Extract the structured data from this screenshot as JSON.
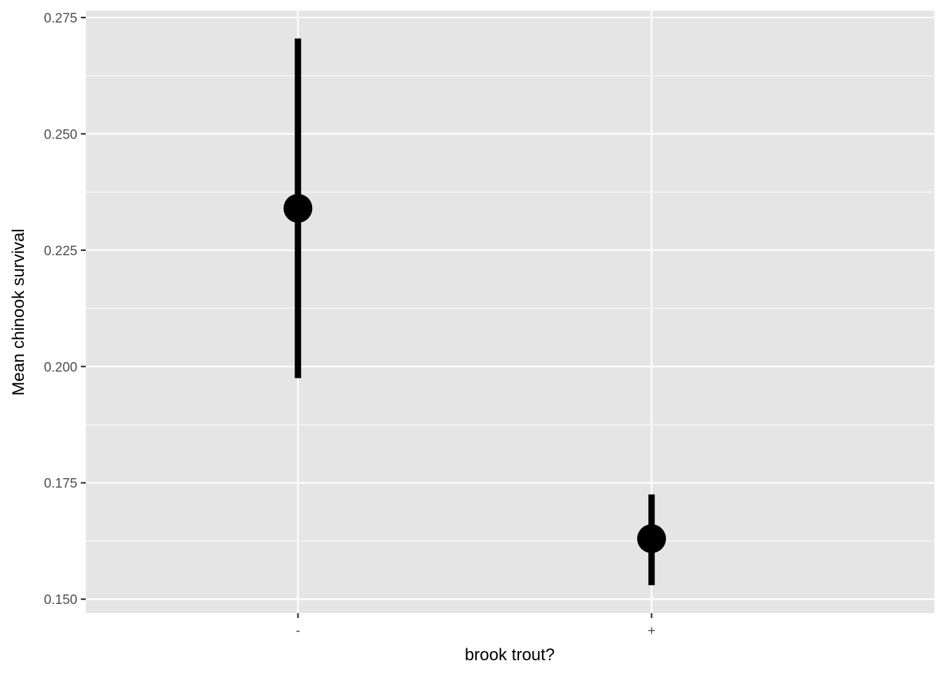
{
  "chart_data": {
    "type": "pointrange",
    "xlabel": "brook trout?",
    "ylabel": "Mean chinook survival",
    "categories": [
      "-",
      "+"
    ],
    "points": [
      {
        "category": "-",
        "mean": 0.234,
        "lower": 0.1975,
        "upper": 0.2705
      },
      {
        "category": "+",
        "mean": 0.163,
        "lower": 0.153,
        "upper": 0.1725
      }
    ],
    "ylim": [
      0.147,
      0.2765
    ],
    "yticks": [
      0.15,
      0.175,
      0.2,
      0.225,
      0.25,
      0.275
    ],
    "ytick_labels": [
      "0.150",
      "0.175",
      "0.200",
      "0.225",
      "0.250",
      "0.275"
    ],
    "grid": true,
    "colors": {
      "panel_background": "#e5e5e5",
      "grid": "#ffffff",
      "marks": "#000000",
      "tick_text": "#4d4d4d",
      "axis_title": "#000000"
    }
  }
}
